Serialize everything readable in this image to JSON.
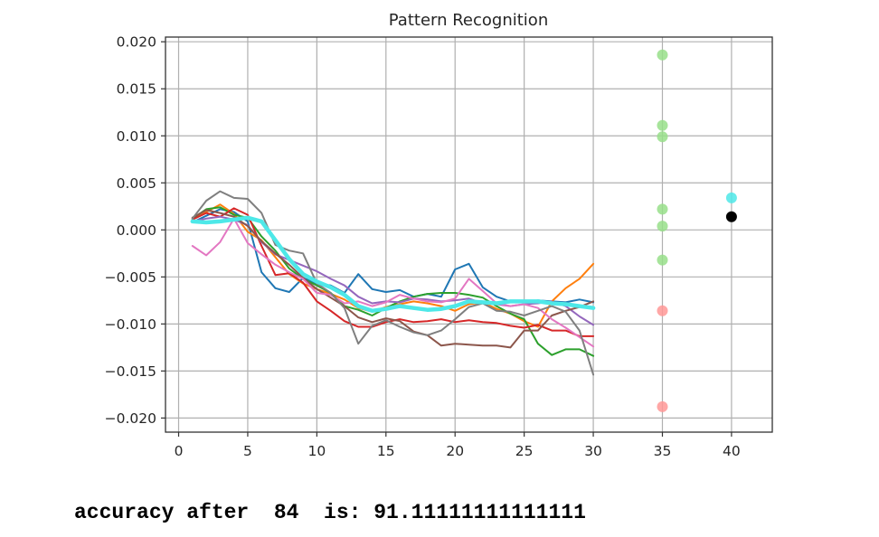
{
  "chart_data": {
    "type": "line",
    "title": "Pattern Recognition",
    "xlabel": "",
    "ylabel": "",
    "xlim": [
      -0.95,
      42.95
    ],
    "ylim": [
      -0.0215,
      0.0205
    ],
    "xticks": [
      0,
      5,
      10,
      15,
      20,
      25,
      30,
      35,
      40
    ],
    "yticks": [
      0.02,
      0.015,
      0.01,
      0.005,
      0.0,
      -0.005,
      -0.01,
      -0.015,
      -0.02
    ],
    "ytick_labels": [
      "0.020",
      "0.015",
      "0.010",
      "0.005",
      "0.000",
      "−0.005",
      "−0.010",
      "−0.015",
      "−0.020"
    ],
    "grid": true,
    "x": [
      1,
      2,
      3,
      4,
      5,
      6,
      7,
      8,
      9,
      10,
      11,
      12,
      13,
      14,
      15,
      16,
      17,
      18,
      19,
      20,
      21,
      22,
      23,
      24,
      25,
      26,
      27,
      28,
      29,
      30
    ],
    "series": [
      {
        "color": "#1f77b4",
        "width": 2,
        "values": [
          0.0008,
          0.0015,
          0.0022,
          0.0019,
          0.0009,
          -0.0045,
          -0.0062,
          -0.0066,
          -0.0051,
          -0.0057,
          -0.0059,
          -0.0067,
          -0.0047,
          -0.0063,
          -0.0066,
          -0.0064,
          -0.0071,
          -0.0068,
          -0.0071,
          -0.0042,
          -0.0036,
          -0.0061,
          -0.0071,
          -0.0076,
          -0.0077,
          -0.0075,
          -0.0076,
          -0.0077,
          -0.0074,
          -0.0077
        ]
      },
      {
        "color": "#ff7f0e",
        "width": 2,
        "values": [
          0.0012,
          0.0019,
          0.0027,
          0.0017,
          -0.0002,
          -0.0011,
          -0.0029,
          -0.0047,
          -0.0057,
          -0.0063,
          -0.0068,
          -0.0074,
          -0.0083,
          -0.0087,
          -0.0082,
          -0.0079,
          -0.0076,
          -0.0078,
          -0.0081,
          -0.0086,
          -0.0079,
          -0.0077,
          -0.0084,
          -0.0089,
          -0.0097,
          -0.0103,
          -0.0076,
          -0.0062,
          -0.0052,
          -0.0036
        ]
      },
      {
        "color": "#2ca02c",
        "width": 2,
        "values": [
          0.0012,
          0.0022,
          0.0024,
          0.0016,
          0.0013,
          -0.0007,
          -0.0022,
          -0.0041,
          -0.0052,
          -0.0059,
          -0.0067,
          -0.0081,
          -0.0085,
          -0.0091,
          -0.0083,
          -0.0076,
          -0.0071,
          -0.0068,
          -0.0067,
          -0.0067,
          -0.0069,
          -0.0072,
          -0.0081,
          -0.0089,
          -0.0095,
          -0.0121,
          -0.0133,
          -0.0127,
          -0.0127,
          -0.0134
        ]
      },
      {
        "color": "#d62728",
        "width": 2,
        "values": [
          0.0011,
          0.0018,
          0.0014,
          0.0023,
          0.0016,
          -0.0017,
          -0.0048,
          -0.0046,
          -0.0056,
          -0.0076,
          -0.0086,
          -0.0097,
          -0.0103,
          -0.0103,
          -0.0098,
          -0.0095,
          -0.0098,
          -0.0097,
          -0.0095,
          -0.0098,
          -0.0096,
          -0.0098,
          -0.0099,
          -0.0102,
          -0.0104,
          -0.0101,
          -0.0107,
          -0.0107,
          -0.0113,
          -0.0113
        ]
      },
      {
        "color": "#9467bd",
        "width": 2,
        "values": [
          0.0009,
          0.0012,
          0.0014,
          0.0011,
          0.0005,
          -0.0013,
          -0.0026,
          -0.0032,
          -0.0038,
          -0.0044,
          -0.0052,
          -0.0059,
          -0.0071,
          -0.0078,
          -0.0076,
          -0.0077,
          -0.0073,
          -0.0074,
          -0.0076,
          -0.0075,
          -0.0073,
          -0.0078,
          -0.0079,
          -0.0081,
          -0.0079,
          -0.0078,
          -0.0076,
          -0.0081,
          -0.0092,
          -0.0101
        ]
      },
      {
        "color": "#8c564b",
        "width": 2,
        "values": [
          0.0013,
          0.0021,
          0.0018,
          0.0014,
          0.0004,
          -0.0012,
          -0.0025,
          -0.0037,
          -0.0051,
          -0.0063,
          -0.0072,
          -0.0081,
          -0.0093,
          -0.0098,
          -0.0094,
          -0.0097,
          -0.0108,
          -0.0112,
          -0.0123,
          -0.0121,
          -0.0122,
          -0.0123,
          -0.0123,
          -0.0125,
          -0.0107,
          -0.0107,
          -0.0091,
          -0.0086,
          -0.0082,
          -0.0076
        ]
      },
      {
        "color": "#e377c2",
        "width": 2,
        "values": [
          -0.0017,
          -0.0027,
          -0.0013,
          0.0012,
          -0.0014,
          -0.0026,
          -0.0037,
          -0.0045,
          -0.0052,
          -0.0067,
          -0.0069,
          -0.0078,
          -0.0076,
          -0.0081,
          -0.0077,
          -0.0069,
          -0.0073,
          -0.0076,
          -0.0077,
          -0.0073,
          -0.0052,
          -0.0065,
          -0.0078,
          -0.0081,
          -0.0079,
          -0.0083,
          -0.0095,
          -0.0104,
          -0.0114,
          -0.0124
        ]
      },
      {
        "color": "#7f7f7f",
        "width": 2,
        "values": [
          0.0012,
          0.0031,
          0.0041,
          0.0034,
          0.0033,
          0.0018,
          -0.0016,
          -0.0022,
          -0.0025,
          -0.0057,
          -0.0067,
          -0.0083,
          -0.0121,
          -0.0102,
          -0.0096,
          -0.0103,
          -0.0109,
          -0.0112,
          -0.0107,
          -0.0095,
          -0.0082,
          -0.0078,
          -0.0086,
          -0.0087,
          -0.0091,
          -0.0086,
          -0.0081,
          -0.0087,
          -0.0107,
          -0.0154
        ]
      },
      {
        "color": "#4de8e8",
        "width": 4.5,
        "values": [
          0.0009,
          0.0008,
          0.0009,
          0.0011,
          0.0013,
          0.0009,
          -0.0011,
          -0.0031,
          -0.0047,
          -0.0055,
          -0.0061,
          -0.0069,
          -0.0081,
          -0.0086,
          -0.0084,
          -0.0081,
          -0.0083,
          -0.0085,
          -0.0084,
          -0.0081,
          -0.0076,
          -0.0077,
          -0.0078,
          -0.0076,
          -0.0076,
          -0.0076,
          -0.0078,
          -0.0079,
          -0.0081,
          -0.0083
        ]
      }
    ],
    "scatter_points": [
      {
        "x": 35,
        "y": 0.0186,
        "color": "#98df8a"
      },
      {
        "x": 35,
        "y": 0.0111,
        "color": "#98df8a"
      },
      {
        "x": 35,
        "y": 0.0099,
        "color": "#98df8a"
      },
      {
        "x": 35,
        "y": 0.0022,
        "color": "#98df8a"
      },
      {
        "x": 35,
        "y": 0.0004,
        "color": "#98df8a"
      },
      {
        "x": 35,
        "y": -0.0032,
        "color": "#98df8a"
      },
      {
        "x": 35,
        "y": -0.0086,
        "color": "#ff9896"
      },
      {
        "x": 35,
        "y": -0.0188,
        "color": "#ff9896"
      },
      {
        "x": 40,
        "y": 0.0034,
        "color": "#4de8e8"
      },
      {
        "x": 40,
        "y": 0.0014,
        "color": "#000000"
      }
    ]
  },
  "output": {
    "text": "accuracy after  84  is: 91.11111111111111"
  }
}
